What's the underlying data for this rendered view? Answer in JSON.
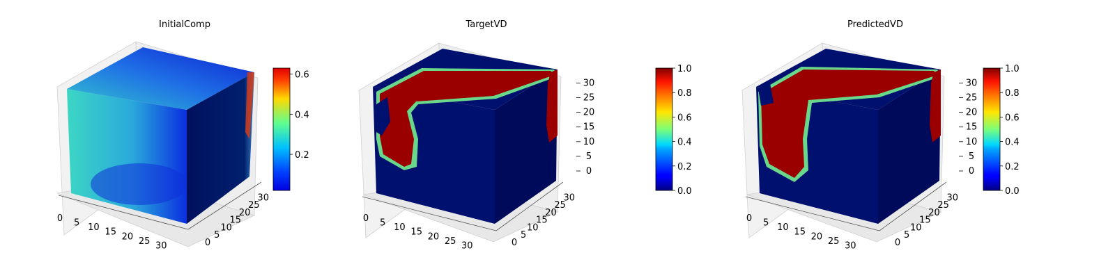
{
  "chart_data": [
    {
      "type": "heatmap",
      "title": "InitialComp",
      "x_ticks": [
        0,
        5,
        10,
        15,
        20,
        25,
        30
      ],
      "y_ticks": [
        0,
        5,
        10,
        15,
        20,
        25,
        30
      ],
      "z_ticks": [],
      "xlim": [
        0,
        32
      ],
      "ylim": [
        0,
        32
      ],
      "zlim": [
        0,
        32
      ],
      "colorbar": {
        "ticks": [
          0.2,
          0.4,
          0.6
        ],
        "min": 0.02,
        "max": 0.63,
        "colormap": "jet"
      }
    },
    {
      "type": "heatmap",
      "title": "TargetVD",
      "x_ticks": [
        0,
        5,
        10,
        15,
        20,
        25,
        30
      ],
      "y_ticks": [
        0,
        5,
        10,
        15,
        20,
        25,
        30
      ],
      "z_ticks": [
        0,
        5,
        10,
        15,
        20,
        25,
        30
      ],
      "xlim": [
        0,
        32
      ],
      "ylim": [
        0,
        32
      ],
      "zlim": [
        0,
        32
      ],
      "colorbar": {
        "ticks": [
          0.0,
          0.2,
          0.4,
          0.6,
          0.8,
          1.0
        ],
        "min": 0.0,
        "max": 1.0,
        "colormap": "jet"
      }
    },
    {
      "type": "heatmap",
      "title": "PredictedVD",
      "x_ticks": [
        0,
        5,
        10,
        15,
        20,
        25,
        30
      ],
      "y_ticks": [
        0,
        5,
        10,
        15,
        20,
        25,
        30
      ],
      "z_ticks": [
        0,
        5,
        10,
        15,
        20,
        25,
        30
      ],
      "xlim": [
        0,
        32
      ],
      "ylim": [
        0,
        32
      ],
      "zlim": [
        0,
        32
      ],
      "colorbar": {
        "ticks": [
          0.0,
          0.2,
          0.4,
          0.6,
          0.8,
          1.0
        ],
        "min": 0.0,
        "max": 1.0,
        "colormap": "jet"
      }
    }
  ]
}
